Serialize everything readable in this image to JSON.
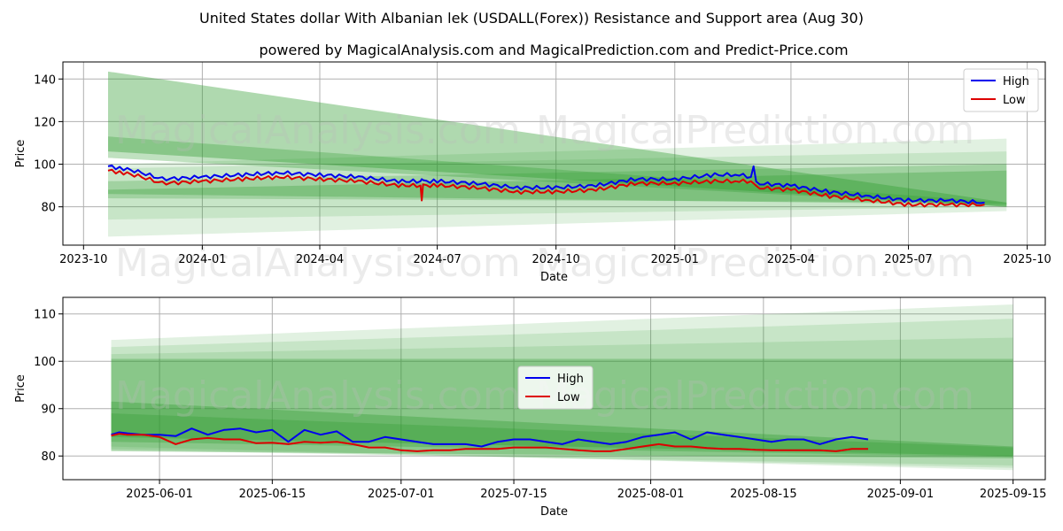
{
  "title_line1": "United States dollar With Albanian lek (USDALL(Forex)) Resistance and Support area (Aug 30)",
  "title_line2": "powered by MagicalAnalysis.com and MagicalPrediction.com and Predict-Price.com",
  "watermarks": [
    "MagicalAnalysis.com",
    "MagicalPrediction.com"
  ],
  "colors": {
    "high": "#0000ee",
    "low": "#dd0000",
    "band": "#2e9a2e",
    "grid": "#b0b0b0"
  },
  "chart_data": [
    {
      "type": "line",
      "title": "",
      "xlabel": "Date",
      "ylabel": "Price",
      "xlim": [
        "2023-09-15",
        "2025-10-15"
      ],
      "ylim": [
        62,
        148
      ],
      "xticks": [
        "2023-10",
        "2024-01",
        "2024-04",
        "2024-07",
        "2024-10",
        "2025-01",
        "2025-04",
        "2025-07",
        "2025-10"
      ],
      "yticks": [
        80,
        100,
        120,
        140
      ],
      "legend": {
        "position": "top-right",
        "entries": [
          "High",
          "Low"
        ]
      },
      "series": [
        {
          "name": "High",
          "x": [
            "2023-10-20",
            "2023-11-01",
            "2023-11-15",
            "2023-12-01",
            "2024-01-01",
            "2024-02-01",
            "2024-03-01",
            "2024-04-01",
            "2024-05-01",
            "2024-06-01",
            "2024-06-18",
            "2024-06-19",
            "2024-06-20",
            "2024-07-01",
            "2024-08-01",
            "2024-09-01",
            "2024-10-01",
            "2024-11-01",
            "2024-12-01",
            "2025-01-01",
            "2025-02-01",
            "2025-02-20",
            "2025-03-01",
            "2025-03-03",
            "2025-03-05",
            "2025-04-01",
            "2025-05-01",
            "2025-06-01",
            "2025-07-01",
            "2025-08-01",
            "2025-08-29"
          ],
          "values": [
            99,
            98,
            96,
            93,
            94,
            95,
            96,
            95,
            94,
            92,
            92,
            93,
            92,
            92,
            91,
            89,
            89,
            90,
            93,
            93,
            95,
            95,
            94,
            99,
            91,
            90,
            87,
            85,
            83,
            83,
            82
          ]
        },
        {
          "name": "Low",
          "x": [
            "2023-10-20",
            "2023-11-01",
            "2023-11-15",
            "2023-12-01",
            "2024-01-01",
            "2024-02-01",
            "2024-03-01",
            "2024-04-01",
            "2024-05-01",
            "2024-06-01",
            "2024-06-18",
            "2024-06-19",
            "2024-06-20",
            "2024-07-01",
            "2024-08-01",
            "2024-09-01",
            "2024-10-01",
            "2024-11-01",
            "2024-12-01",
            "2025-01-01",
            "2025-02-01",
            "2025-02-20",
            "2025-03-01",
            "2025-03-03",
            "2025-03-05",
            "2025-04-01",
            "2025-05-01",
            "2025-06-01",
            "2025-07-01",
            "2025-08-01",
            "2025-08-29"
          ],
          "values": [
            97,
            96,
            94,
            91,
            92,
            93,
            94,
            93,
            92,
            90,
            90,
            83,
            90,
            90,
            89,
            87,
            87,
            88,
            91,
            91,
            92,
            92,
            92,
            91,
            89,
            88,
            85,
            83,
            81,
            81,
            81
          ]
        }
      ],
      "bands": [
        {
          "x": [
            "2023-10-20",
            "2025-09-15"
          ],
          "upper": [
            143.5,
            82
          ],
          "lower": [
            106,
            80
          ],
          "opacity": 0.38
        },
        {
          "x": [
            "2023-10-20",
            "2025-09-15"
          ],
          "upper": [
            113,
            82
          ],
          "lower": [
            103,
            80
          ],
          "opacity": 0.3
        },
        {
          "x": [
            "2023-10-20",
            "2025-09-15"
          ],
          "upper": [
            100,
            112
          ],
          "lower": [
            66,
            78
          ],
          "opacity": 0.14
        },
        {
          "x": [
            "2023-10-20",
            "2025-09-15"
          ],
          "upper": [
            98,
            106
          ],
          "lower": [
            74,
            80
          ],
          "opacity": 0.14
        },
        {
          "x": [
            "2023-10-20",
            "2025-09-15"
          ],
          "upper": [
            92,
            100
          ],
          "lower": [
            84,
            82
          ],
          "opacity": 0.25
        },
        {
          "x": [
            "2023-10-20",
            "2025-09-15"
          ],
          "upper": [
            88,
            97
          ],
          "lower": [
            86,
            81
          ],
          "opacity": 0.3
        }
      ]
    },
    {
      "type": "line",
      "title": "",
      "xlabel": "Date",
      "ylabel": "Price",
      "xlim": [
        "2025-05-20",
        "2025-09-19"
      ],
      "ylim": [
        75,
        113.5
      ],
      "xticks": [
        "2025-06-01",
        "2025-06-15",
        "2025-07-01",
        "2025-07-15",
        "2025-08-01",
        "2025-08-15",
        "2025-09-01",
        "2025-09-15"
      ],
      "yticks": [
        80,
        90,
        100,
        110
      ],
      "legend": {
        "position": "center",
        "entries": [
          "High",
          "Low"
        ]
      },
      "series": [
        {
          "name": "High",
          "x": [
            "2025-05-26",
            "2025-05-27",
            "2025-05-28",
            "2025-05-30",
            "2025-06-01",
            "2025-06-03",
            "2025-06-05",
            "2025-06-07",
            "2025-06-09",
            "2025-06-11",
            "2025-06-13",
            "2025-06-15",
            "2025-06-17",
            "2025-06-19",
            "2025-06-21",
            "2025-06-23",
            "2025-06-25",
            "2025-06-27",
            "2025-06-29",
            "2025-07-01",
            "2025-07-03",
            "2025-07-05",
            "2025-07-07",
            "2025-07-09",
            "2025-07-11",
            "2025-07-13",
            "2025-07-15",
            "2025-07-17",
            "2025-07-19",
            "2025-07-21",
            "2025-07-23",
            "2025-07-25",
            "2025-07-27",
            "2025-07-29",
            "2025-07-31",
            "2025-08-02",
            "2025-08-04",
            "2025-08-06",
            "2025-08-08",
            "2025-08-10",
            "2025-08-12",
            "2025-08-14",
            "2025-08-16",
            "2025-08-18",
            "2025-08-20",
            "2025-08-22",
            "2025-08-24",
            "2025-08-26",
            "2025-08-28"
          ],
          "values": [
            84.5,
            85,
            84.8,
            84.5,
            84.5,
            84.2,
            85.8,
            84.5,
            85.5,
            85.8,
            85,
            85.5,
            83,
            85.5,
            84.5,
            85.2,
            83,
            83,
            84,
            83.5,
            83,
            82.5,
            82.5,
            82.5,
            82,
            83,
            83.5,
            83.5,
            83,
            82.5,
            83.5,
            83,
            82.5,
            83,
            84,
            84.5,
            85,
            83.5,
            85,
            84.5,
            84,
            83.5,
            83,
            83.5,
            83.5,
            82.5,
            83.5,
            84,
            83.5
          ]
        },
        {
          "name": "Low",
          "x": [
            "2025-05-26",
            "2025-05-27",
            "2025-05-28",
            "2025-05-30",
            "2025-06-01",
            "2025-06-03",
            "2025-06-05",
            "2025-06-07",
            "2025-06-09",
            "2025-06-11",
            "2025-06-13",
            "2025-06-15",
            "2025-06-17",
            "2025-06-19",
            "2025-06-21",
            "2025-06-23",
            "2025-06-25",
            "2025-06-27",
            "2025-06-29",
            "2025-07-01",
            "2025-07-03",
            "2025-07-05",
            "2025-07-07",
            "2025-07-09",
            "2025-07-11",
            "2025-07-13",
            "2025-07-15",
            "2025-07-17",
            "2025-07-19",
            "2025-07-21",
            "2025-07-23",
            "2025-07-25",
            "2025-07-27",
            "2025-07-29",
            "2025-07-31",
            "2025-08-02",
            "2025-08-04",
            "2025-08-06",
            "2025-08-08",
            "2025-08-10",
            "2025-08-12",
            "2025-08-14",
            "2025-08-16",
            "2025-08-18",
            "2025-08-20",
            "2025-08-22",
            "2025-08-24",
            "2025-08-26",
            "2025-08-28"
          ],
          "values": [
            84.3,
            84.7,
            84.5,
            84.5,
            84,
            82.5,
            83.5,
            83.8,
            83.5,
            83.5,
            82.7,
            82.8,
            82.5,
            83,
            82.8,
            83,
            82.5,
            81.8,
            81.8,
            81.2,
            81,
            81.2,
            81.2,
            81.5,
            81.5,
            81.5,
            81.8,
            81.8,
            81.8,
            81.5,
            81.2,
            81,
            81,
            81.5,
            82,
            82.5,
            82,
            82,
            81.7,
            81.5,
            81.5,
            81.3,
            81.2,
            81.2,
            81.2,
            81.2,
            81,
            81.5,
            81.5
          ]
        }
      ],
      "bands": [
        {
          "x": [
            "2025-05-26",
            "2025-09-15"
          ],
          "upper": [
            104.5,
            112
          ],
          "lower": [
            82,
            77
          ],
          "opacity": 0.14
        },
        {
          "x": [
            "2025-05-26",
            "2025-09-15"
          ],
          "upper": [
            103,
            109
          ],
          "lower": [
            81.5,
            77.5
          ],
          "opacity": 0.14
        },
        {
          "x": [
            "2025-05-26",
            "2025-09-15"
          ],
          "upper": [
            101.5,
            105
          ],
          "lower": [
            81.2,
            78
          ],
          "opacity": 0.14
        },
        {
          "x": [
            "2025-05-26",
            "2025-09-15"
          ],
          "upper": [
            100.5,
            100.5
          ],
          "lower": [
            81,
            79.5
          ],
          "opacity": 0.3
        },
        {
          "x": [
            "2025-05-26",
            "2025-09-15"
          ],
          "upper": [
            91.5,
            82
          ],
          "lower": [
            84,
            80
          ],
          "opacity": 0.35
        },
        {
          "x": [
            "2025-05-26",
            "2025-09-15"
          ],
          "upper": [
            89,
            81.8
          ],
          "lower": [
            83,
            79.8
          ],
          "opacity": 0.3
        }
      ]
    }
  ]
}
